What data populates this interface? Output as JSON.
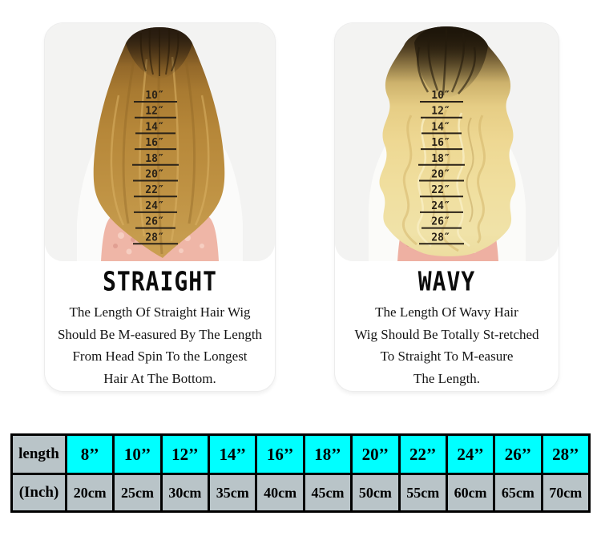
{
  "panels": [
    {
      "heading": "STRAIGHT",
      "lines": [
        "The Length Of Straight Hair Wig",
        "Should Be M-easured By The Length",
        "From Head Spin To the Longest",
        "Hair At The Bottom."
      ]
    },
    {
      "heading": "WAVY",
      "lines": [
        "The Length Of Wavy Hair",
        "Wig Should Be Totally St-retched",
        "To Straight To M-easure",
        "The Length."
      ]
    }
  ],
  "ruler": {
    "marks": [
      "10″",
      "12″",
      "14″",
      "16″",
      "18″",
      "20″",
      "22″",
      "24″",
      "26″",
      "28″"
    ]
  },
  "size_table": {
    "length_header": "length",
    "unit_header": "(Inch)",
    "lengths": [
      "8’’",
      "10’’",
      "12’’",
      "14’’",
      "16’’",
      "18’’",
      "20’’",
      "22’’",
      "24’’",
      "26’’",
      "28’’"
    ],
    "centimeters": [
      "20cm",
      "25cm",
      "30cm",
      "35cm",
      "40cm",
      "45cm",
      "50cm",
      "55cm",
      "60cm",
      "65cm",
      "70cm"
    ],
    "header_cell_bg": "#00ffff",
    "label_cell_bg": "#b9c4c8"
  },
  "colors": {
    "photo_bg": "#f3f3f2",
    "straight_hair": "#b68739",
    "wavy_hair": "#eed893",
    "dark_roots": "#2c2213",
    "dress_pink": "#efb6a7"
  }
}
